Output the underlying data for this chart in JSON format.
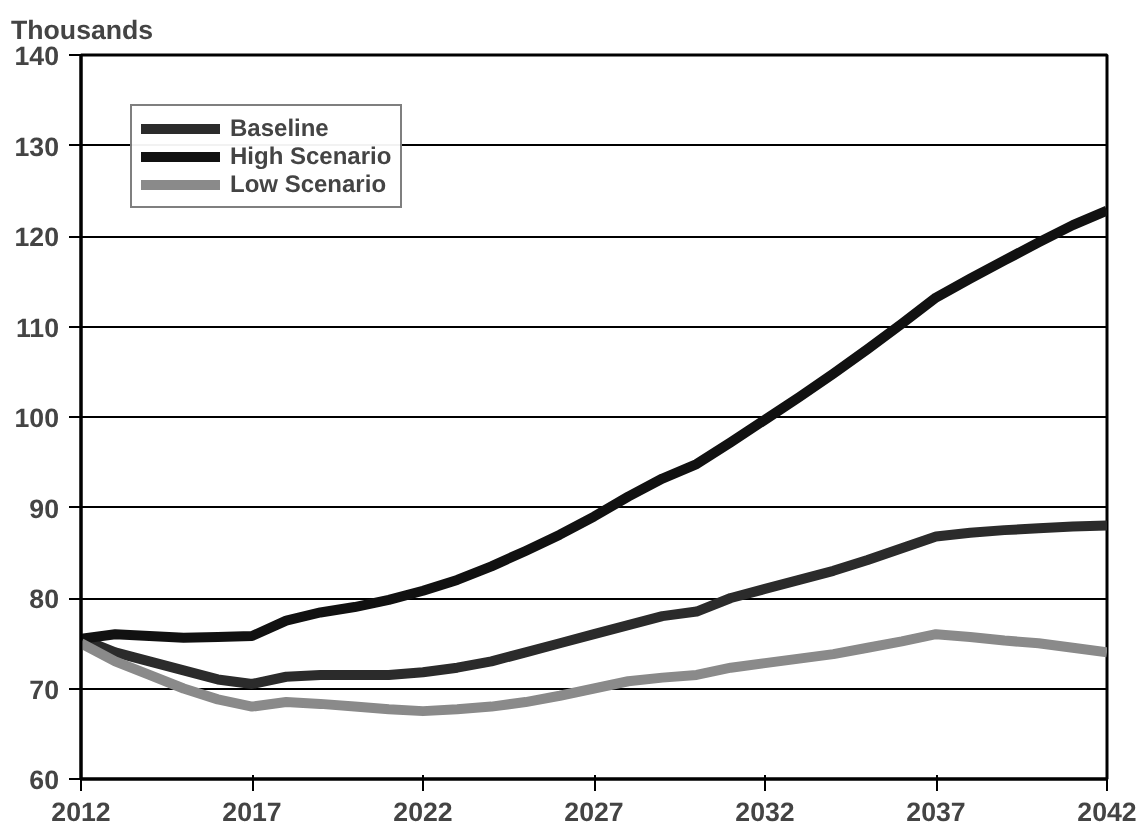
{
  "chart_data": {
    "type": "line",
    "ylabel": "Thousands",
    "x": [
      2012,
      2013,
      2014,
      2015,
      2016,
      2017,
      2018,
      2019,
      2020,
      2021,
      2022,
      2023,
      2024,
      2025,
      2026,
      2027,
      2028,
      2029,
      2030,
      2031,
      2032,
      2033,
      2034,
      2035,
      2036,
      2037,
      2038,
      2039,
      2040,
      2041,
      2042
    ],
    "series": [
      {
        "name": "Baseline",
        "color": "#2b2b2b",
        "values": [
          75.5,
          74,
          73,
          72,
          71,
          70.5,
          71.3,
          71.5,
          71.5,
          71.5,
          71.8,
          72.3,
          73,
          74,
          75,
          76,
          77,
          78,
          78.5,
          80,
          81,
          82,
          83,
          84.2,
          85.5,
          86.8,
          87.2,
          87.5,
          87.7,
          87.9,
          88
        ]
      },
      {
        "name": "High Scenario",
        "color": "#111111",
        "values": [
          75.5,
          76,
          75.8,
          75.6,
          75.7,
          75.8,
          77.5,
          78.4,
          79,
          79.8,
          80.8,
          82,
          83.5,
          85.2,
          87,
          89,
          91.2,
          93.2,
          94.8,
          97.2,
          99.7,
          102.2,
          104.8,
          107.5,
          110.3,
          113.2,
          115.3,
          117.3,
          119.3,
          121.2,
          122.8
        ]
      },
      {
        "name": "Low Scenario",
        "color": "#8a8a8a",
        "values": [
          75,
          73,
          71.5,
          70,
          68.8,
          68,
          68.5,
          68.3,
          68,
          67.7,
          67.5,
          67.7,
          68,
          68.5,
          69.2,
          70,
          70.8,
          71.2,
          71.5,
          72.3,
          72.8,
          73.3,
          73.8,
          74.5,
          75.2,
          76,
          75.7,
          75.3,
          75,
          74.5,
          74
        ]
      }
    ],
    "xlim": [
      2012,
      2042
    ],
    "xticks": [
      2012,
      2017,
      2022,
      2027,
      2032,
      2037,
      2042
    ],
    "ylim": [
      60,
      140
    ],
    "yticks": [
      60,
      70,
      80,
      90,
      100,
      110,
      120,
      130,
      140
    ],
    "grid": "y",
    "legend": "top left",
    "marker": "none",
    "line_style": "solid"
  }
}
